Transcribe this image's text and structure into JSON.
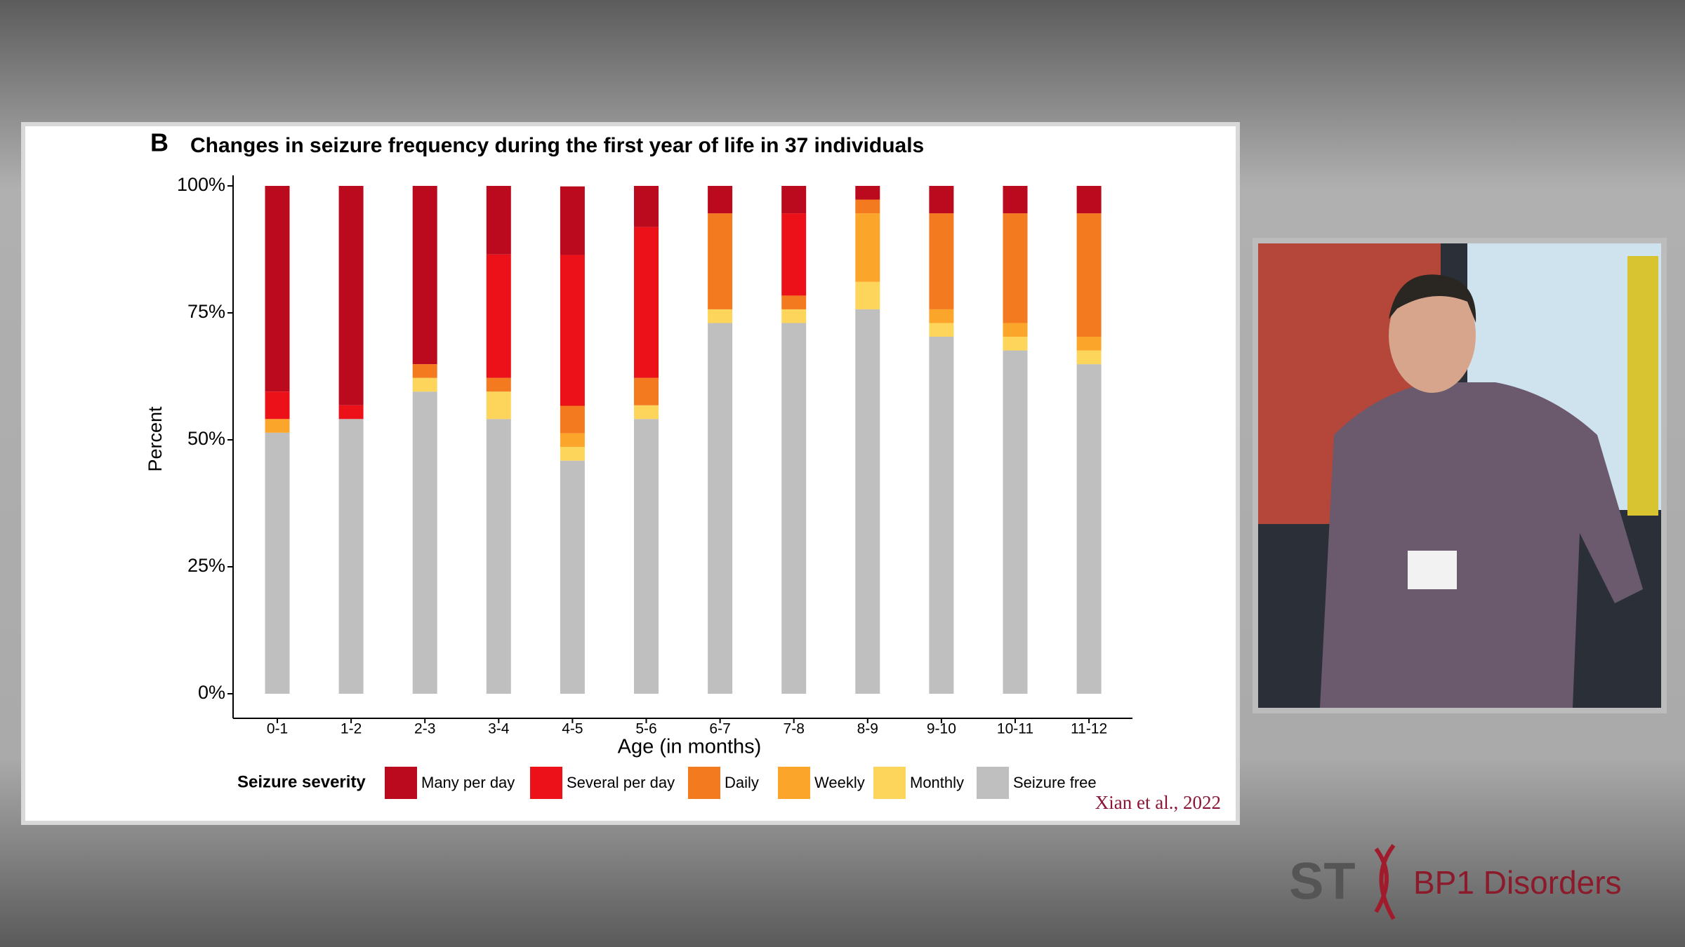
{
  "chart_data": {
    "type": "stacked_bar",
    "panel_label": "B",
    "title": "Changes in seizure frequency during the first year of life in 37 individuals",
    "x_label": "Age (in months)",
    "y_label": "Percent",
    "legend_title": "Seizure severity",
    "source": "Xian et al., 2022",
    "categories": [
      "0-1",
      "1-2",
      "2-3",
      "3-4",
      "4-5",
      "5-6",
      "6-7",
      "7-8",
      "8-9",
      "9-10",
      "10-11",
      "11-12"
    ],
    "series": [
      {
        "name": "Many per day",
        "color": "#bb0a1e",
        "values": [
          40.5,
          43.2,
          35.1,
          13.5,
          13.5,
          8.1,
          5.4,
          5.4,
          2.7,
          5.4,
          5.4,
          5.4
        ]
      },
      {
        "name": "Several per day",
        "color": "#ec1118",
        "values": [
          5.4,
          2.7,
          0,
          24.3,
          29.7,
          29.7,
          0,
          16.2,
          0,
          0,
          0,
          0
        ]
      },
      {
        "name": "Daily",
        "color": "#f47a20",
        "values": [
          0,
          0,
          2.7,
          2.7,
          5.4,
          5.4,
          18.9,
          2.7,
          2.7,
          18.9,
          21.6,
          24.3
        ]
      },
      {
        "name": "Weekly",
        "color": "#fba62a",
        "values": [
          2.7,
          0,
          0,
          0,
          2.7,
          0,
          0,
          0,
          13.5,
          2.7,
          2.7,
          2.7
        ]
      },
      {
        "name": "Monthly",
        "color": "#fdd55a",
        "values": [
          0,
          0,
          2.7,
          5.4,
          2.7,
          2.7,
          2.7,
          2.7,
          5.4,
          2.7,
          2.7,
          2.7
        ]
      },
      {
        "name": "Seizure free",
        "color": "#bfbfbf",
        "values": [
          51.4,
          54.1,
          59.5,
          54.1,
          45.9,
          54.1,
          73.0,
          73.0,
          75.7,
          70.3,
          67.6,
          64.9
        ]
      }
    ],
    "stacked": true,
    "ylim": [
      0,
      100
    ],
    "yticks": [
      {
        "value": 0,
        "label": "0%"
      },
      {
        "value": 25,
        "label": "25%"
      },
      {
        "value": 50,
        "label": "50%"
      },
      {
        "value": 75,
        "label": "75%"
      },
      {
        "value": 100,
        "label": "100%"
      }
    ]
  },
  "branding": {
    "mark": "ST",
    "name": "BP1 Disorders"
  }
}
